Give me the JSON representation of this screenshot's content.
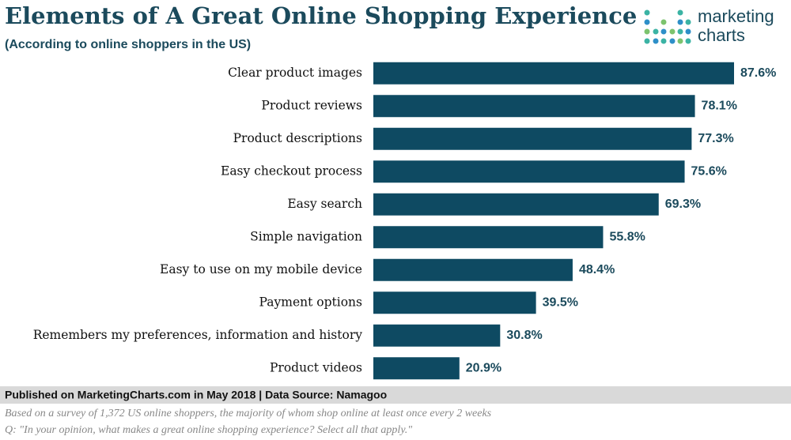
{
  "chart_data": {
    "type": "bar",
    "orientation": "horizontal",
    "title": "Elements of A Great Online Shopping Experience",
    "subtitle": "(According to online shoppers in the US)",
    "brand": [
      "marketing",
      "charts"
    ],
    "categories": [
      "Clear product images",
      "Product reviews",
      "Product descriptions",
      "Easy checkout process",
      "Easy search",
      "Simple navigation",
      "Easy to use on my mobile device",
      "Payment options",
      "Remembers my preferences, information and history",
      "Product videos"
    ],
    "values": [
      87.6,
      78.1,
      77.3,
      75.6,
      69.3,
      55.8,
      48.4,
      39.5,
      30.8,
      20.9
    ],
    "value_labels": [
      "87.6%",
      "78.1%",
      "77.3%",
      "75.6%",
      "69.3%",
      "55.8%",
      "48.4%",
      "39.5%",
      "30.8%",
      "20.9%"
    ],
    "color": "#0e4a62",
    "source": "Published on MarketingCharts.com in May 2018 | Data Source: Namagoo",
    "notes": [
      "Based on a survey of 1,372 US online shoppers, the majority of whom shop online at least once every 2 weeks",
      "Q: \"In your opinion, what makes a great online shopping experience? Select all that apply.\""
    ]
  }
}
